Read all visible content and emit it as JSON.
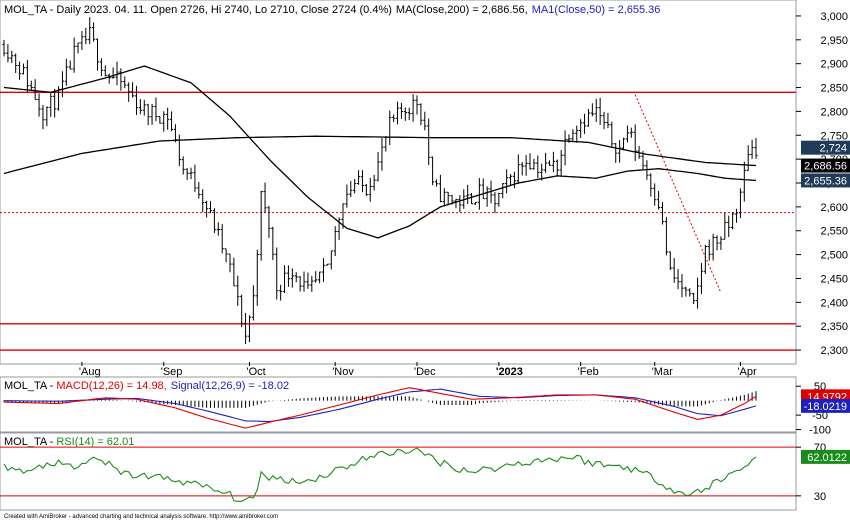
{
  "header": {
    "ticker": "MOL_TA",
    "dash": " - ",
    "price_line": "Daily 2023. 04. 11. Open 2726, Hi 2740, Lo 2710, Close 2724 (0.4%)",
    "ma200_label": "MA(Close,200) = 2,686.56,",
    "ma50_label": "MA1(Close,50) = 2,655.36"
  },
  "macd_header": {
    "ticker": "MOL_TA",
    "macd_label": "MACD(12,26) = 14.98,",
    "signal_label": "Signal(12,26,9) = -18.02"
  },
  "rsi_header": {
    "ticker": "MOL_TA",
    "rsi_label": "RSI(14) = 62.01"
  },
  "footer": "Created with AmiBroker - advanced charting and technical analysis software. http://www.amibroker.com",
  "colors": {
    "price_bar": "#000000",
    "ma": "#000000",
    "horizontal_line": "#e00000",
    "macd": "#e00000",
    "signal": "#2020c0",
    "rsi": "#1a8a1a",
    "close_tag_bg": "#1f3b5a",
    "ma200_tag_bg": "#000000",
    "ma50_tag_bg": "#1f3b5a",
    "macd_tag_bg": "#e00000",
    "signal_tag_bg": "#2020c0",
    "rsi_tag_bg": "#1a8a1a"
  },
  "chart_data": [
    {
      "type": "ohlc",
      "ylim": [
        2275,
        3025
      ],
      "yticks": [
        "3,000",
        "2,950",
        "2,900",
        "2,850",
        "2,800",
        "2,750",
        "2,700",
        "2,650",
        "2,600",
        "2,550",
        "2,500",
        "2,450",
        "2,400",
        "2,350",
        "2,300"
      ],
      "ytick_values": [
        3000,
        2950,
        2900,
        2850,
        2800,
        2750,
        2700,
        2650,
        2600,
        2550,
        2500,
        2450,
        2400,
        2350,
        2300
      ],
      "month_labels": [
        "Aug",
        "Sep",
        "Oct",
        "Nov",
        "Dec",
        "2023",
        "Feb",
        "Mar",
        "Apr"
      ],
      "month_ticks": [
        "'Aug",
        "'Sep",
        "'Oct",
        "'Nov",
        "'Dec",
        "'2023",
        "'Feb",
        "'Mar",
        "'Apr"
      ],
      "month_index": [
        20,
        41,
        63,
        85,
        106,
        127,
        148,
        167,
        189
      ],
      "value_tags": {
        "close": "2,724",
        "ma200": "2,686.56",
        "ma50": "2,655.36"
      },
      "value_tag_values": {
        "close": 2724,
        "ma200": 2686.56,
        "ma50": 2655.36
      },
      "horizontal_lines": [
        2840,
        2355,
        2300
      ],
      "dotted_line": 2588,
      "trendline": {
        "from": [
          162,
          2835
        ],
        "to": [
          184,
          2420
        ]
      },
      "bars": 194,
      "anchors": [
        [
          0,
          2940
        ],
        [
          5,
          2880
        ],
        [
          10,
          2800
        ],
        [
          14,
          2830
        ],
        [
          18,
          2920
        ],
        [
          22,
          2960
        ],
        [
          26,
          2880
        ],
        [
          30,
          2860
        ],
        [
          36,
          2800
        ],
        [
          42,
          2790
        ],
        [
          46,
          2680
        ],
        [
          50,
          2640
        ],
        [
          54,
          2560
        ],
        [
          58,
          2470
        ],
        [
          62,
          2330
        ],
        [
          64,
          2410
        ],
        [
          66,
          2620
        ],
        [
          68,
          2560
        ],
        [
          70,
          2430
        ],
        [
          74,
          2470
        ],
        [
          78,
          2420
        ],
        [
          83,
          2470
        ],
        [
          87,
          2620
        ],
        [
          90,
          2650
        ],
        [
          93,
          2640
        ],
        [
          96,
          2690
        ],
        [
          99,
          2770
        ],
        [
          102,
          2800
        ],
        [
          106,
          2820
        ],
        [
          108,
          2770
        ],
        [
          110,
          2640
        ],
        [
          113,
          2620
        ],
        [
          118,
          2610
        ],
        [
          122,
          2630
        ],
        [
          126,
          2610
        ],
        [
          130,
          2660
        ],
        [
          134,
          2700
        ],
        [
          138,
          2680
        ],
        [
          142,
          2690
        ],
        [
          145,
          2760
        ],
        [
          148,
          2780
        ],
        [
          152,
          2800
        ],
        [
          156,
          2740
        ],
        [
          158,
          2720
        ],
        [
          160,
          2760
        ],
        [
          164,
          2690
        ],
        [
          168,
          2610
        ],
        [
          171,
          2460
        ],
        [
          174,
          2430
        ],
        [
          177,
          2390
        ],
        [
          180,
          2510
        ],
        [
          183,
          2530
        ],
        [
          186,
          2560
        ],
        [
          189,
          2620
        ],
        [
          191,
          2720
        ],
        [
          193,
          2724
        ]
      ],
      "ma200_anchors": [
        [
          0,
          2670
        ],
        [
          20,
          2712
        ],
        [
          40,
          2738
        ],
        [
          60,
          2745
        ],
        [
          80,
          2748
        ],
        [
          110,
          2745
        ],
        [
          130,
          2745
        ],
        [
          150,
          2735
        ],
        [
          165,
          2710
        ],
        [
          180,
          2693
        ],
        [
          193,
          2686.56
        ]
      ],
      "ma50_anchors": [
        [
          0,
          2850
        ],
        [
          12,
          2840
        ],
        [
          26,
          2870
        ],
        [
          36,
          2895
        ],
        [
          48,
          2860
        ],
        [
          58,
          2790
        ],
        [
          68,
          2700
        ],
        [
          78,
          2620
        ],
        [
          88,
          2555
        ],
        [
          96,
          2535
        ],
        [
          104,
          2560
        ],
        [
          112,
          2600
        ],
        [
          122,
          2625
        ],
        [
          132,
          2650
        ],
        [
          142,
          2665
        ],
        [
          152,
          2660
        ],
        [
          160,
          2675
        ],
        [
          168,
          2680
        ],
        [
          178,
          2670
        ],
        [
          185,
          2660
        ],
        [
          193,
          2655.36
        ]
      ]
    },
    {
      "type": "macd",
      "ylim": [
        -105,
        75
      ],
      "yticks": [
        "50",
        "-50",
        "-100"
      ],
      "ytick_values": [
        50,
        -50,
        -100
      ],
      "value_tags": {
        "macd": "14.9792",
        "signal": "-18.0219"
      },
      "value_tag_values": {
        "macd": 14.9792,
        "signal": -18.0219
      },
      "macd_anchors": [
        [
          0,
          -5
        ],
        [
          14,
          -10
        ],
        [
          26,
          10
        ],
        [
          34,
          5
        ],
        [
          44,
          -25
        ],
        [
          52,
          -60
        ],
        [
          62,
          -95
        ],
        [
          68,
          -75
        ],
        [
          76,
          -50
        ],
        [
          86,
          -15
        ],
        [
          96,
          20
        ],
        [
          104,
          45
        ],
        [
          110,
          30
        ],
        [
          120,
          5
        ],
        [
          130,
          10
        ],
        [
          142,
          20
        ],
        [
          152,
          20
        ],
        [
          162,
          5
        ],
        [
          172,
          -40
        ],
        [
          178,
          -65
        ],
        [
          184,
          -50
        ],
        [
          190,
          -10
        ],
        [
          193,
          14.98
        ]
      ],
      "signal_anchors": [
        [
          0,
          0
        ],
        [
          14,
          -2
        ],
        [
          26,
          5
        ],
        [
          34,
          8
        ],
        [
          44,
          -10
        ],
        [
          52,
          -35
        ],
        [
          62,
          -70
        ],
        [
          68,
          -72
        ],
        [
          76,
          -58
        ],
        [
          86,
          -30
        ],
        [
          96,
          5
        ],
        [
          104,
          30
        ],
        [
          112,
          40
        ],
        [
          122,
          15
        ],
        [
          132,
          10
        ],
        [
          142,
          18
        ],
        [
          152,
          20
        ],
        [
          162,
          10
        ],
        [
          172,
          -20
        ],
        [
          178,
          -45
        ],
        [
          184,
          -52
        ],
        [
          190,
          -30
        ],
        [
          193,
          -18.02
        ]
      ]
    },
    {
      "type": "rsi",
      "ylim": [
        20,
        80
      ],
      "yticks": [
        "70",
        "30"
      ],
      "ytick_values": [
        70,
        30
      ],
      "value_tags": {
        "rsi": "62.0122"
      },
      "value_tag_values": {
        "rsi": 62.0122
      },
      "horizontal_lines": [
        70,
        30
      ],
      "rsi_anchors": [
        [
          0,
          55
        ],
        [
          6,
          48
        ],
        [
          12,
          58
        ],
        [
          18,
          52
        ],
        [
          24,
          62
        ],
        [
          30,
          48
        ],
        [
          38,
          46
        ],
        [
          46,
          42
        ],
        [
          54,
          35
        ],
        [
          60,
          28
        ],
        [
          64,
          25
        ],
        [
          66,
          48
        ],
        [
          70,
          44
        ],
        [
          78,
          42
        ],
        [
          86,
          52
        ],
        [
          92,
          60
        ],
        [
          98,
          65
        ],
        [
          104,
          68
        ],
        [
          108,
          64
        ],
        [
          114,
          55
        ],
        [
          120,
          50
        ],
        [
          128,
          54
        ],
        [
          134,
          58
        ],
        [
          140,
          60
        ],
        [
          146,
          62
        ],
        [
          150,
          58
        ],
        [
          154,
          55
        ],
        [
          160,
          54
        ],
        [
          166,
          46
        ],
        [
          172,
          35
        ],
        [
          176,
          30
        ],
        [
          182,
          40
        ],
        [
          188,
          50
        ],
        [
          193,
          62.01
        ]
      ]
    }
  ]
}
